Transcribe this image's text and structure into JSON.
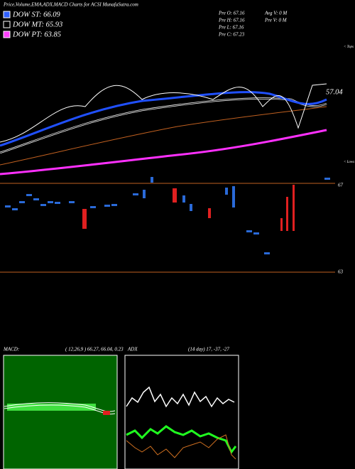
{
  "header": {
    "title": "Price,Volume,EMA,ADX,MACD Charts for ACSI MunafaSutra.com"
  },
  "legend": {
    "items": [
      "DOW ST: 66.09",
      "DOW MT: 65.93",
      "DOW PT: 63.85"
    ]
  },
  "quote": {
    "prev": [
      "Pre  O: 67.16",
      "Pre  H: 67.16",
      "Pre  L: 67.16",
      "Pre  C: 67.23"
    ],
    "volume": [
      "Avg V: 0  M",
      "Pre  V: 0  M"
    ]
  },
  "price_panel": {
    "last_price": "57.04",
    "tops": "< Tops",
    "lows": "< Lows"
  },
  "volume_panel": {
    "upper_label": "67",
    "lower_label": "63"
  },
  "macd": {
    "label": "MACD:",
    "params": "( 12,26,9 ) 66.27, 66.04, 0.23"
  },
  "adx": {
    "label": "ADX",
    "params": "(14  day) 17, -37, -27"
  }
}
